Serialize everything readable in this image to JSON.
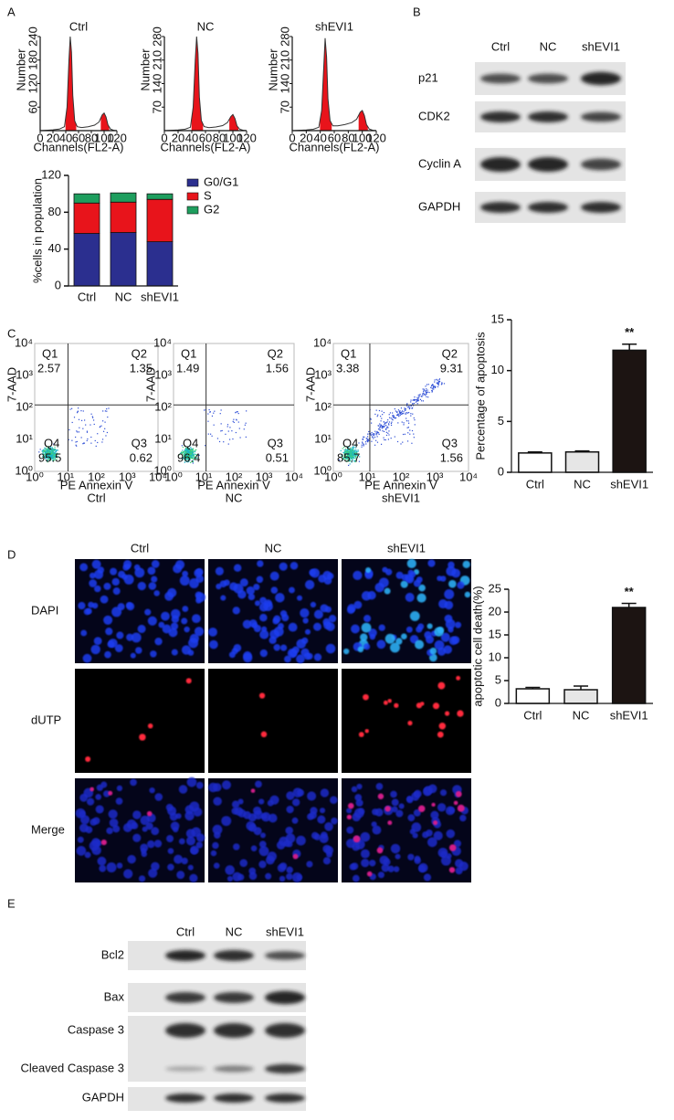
{
  "panel_labels": [
    "A",
    "B",
    "C",
    "D",
    "E"
  ],
  "chart_data": [
    {
      "type": "line",
      "title": "Ctrl",
      "x_label": "Channels(FL2-A)",
      "y_label": "Number",
      "x": [
        0,
        10,
        20,
        30,
        38,
        42,
        45,
        47,
        49,
        51,
        54,
        58,
        65,
        75,
        85,
        92,
        97,
        100,
        103,
        106,
        110,
        115,
        120
      ],
      "values": [
        0,
        1,
        2,
        4,
        10,
        60,
        180,
        240,
        200,
        90,
        25,
        10,
        8,
        10,
        14,
        22,
        40,
        45,
        35,
        15,
        4,
        1,
        0
      ],
      "xlim": [
        0,
        120
      ],
      "xticks": [
        0,
        20,
        40,
        60,
        80,
        100,
        120
      ],
      "ylim": [
        0,
        240
      ],
      "yticks": [
        60,
        120,
        180,
        240
      ],
      "color": "#333333",
      "fill": "#e8141b"
    },
    {
      "type": "line",
      "title": "NC",
      "x_label": "Channels(FL2-A)",
      "y_label": "Number",
      "x": [
        0,
        10,
        20,
        30,
        38,
        42,
        45,
        47,
        49,
        51,
        54,
        58,
        65,
        75,
        85,
        92,
        97,
        100,
        103,
        106,
        110,
        115,
        120
      ],
      "values": [
        0,
        1,
        2,
        4,
        10,
        70,
        210,
        280,
        230,
        100,
        30,
        12,
        9,
        11,
        15,
        24,
        42,
        48,
        36,
        14,
        4,
        1,
        0
      ],
      "xlim": [
        0,
        120
      ],
      "xticks": [
        0,
        20,
        40,
        60,
        80,
        100,
        120
      ],
      "ylim": [
        0,
        280
      ],
      "yticks": [
        70,
        140,
        210,
        280
      ],
      "color": "#333333",
      "fill": "#e8141b"
    },
    {
      "type": "line",
      "title": "shEVI1",
      "x_label": "Channels(FL2-A)",
      "y_label": "Number",
      "x": [
        0,
        10,
        20,
        30,
        38,
        42,
        45,
        47,
        49,
        51,
        54,
        58,
        65,
        75,
        85,
        92,
        97,
        100,
        103,
        106,
        110,
        115,
        120
      ],
      "values": [
        0,
        1,
        2,
        4,
        10,
        60,
        190,
        275,
        220,
        95,
        30,
        14,
        14,
        18,
        24,
        34,
        55,
        60,
        45,
        18,
        5,
        1,
        0
      ],
      "xlim": [
        0,
        120
      ],
      "xticks": [
        0,
        20,
        40,
        60,
        80,
        100,
        120
      ],
      "ylim": [
        0,
        280
      ],
      "yticks": [
        70,
        140,
        210,
        280
      ],
      "color": "#333333",
      "fill": "#e8141b"
    },
    {
      "type": "stacked-bar",
      "y_label": "%cells in population",
      "categories": [
        "Ctrl",
        "NC",
        "shEVI1"
      ],
      "series": [
        {
          "name": "G0/G1",
          "color": "#2b2f8f",
          "values": [
            57,
            58,
            48
          ]
        },
        {
          "name": "S",
          "color": "#e8141b",
          "values": [
            33,
            33,
            46
          ]
        },
        {
          "name": "G2",
          "color": "#1e9e5e",
          "values": [
            10,
            10,
            6
          ]
        }
      ],
      "ylim": [
        0,
        120
      ],
      "yticks": [
        0,
        40,
        80,
        120
      ],
      "legend": "right"
    },
    {
      "type": "bar",
      "y_label": "Percentage of apoptosis",
      "categories": [
        "Ctrl",
        "NC",
        "shEVI1"
      ],
      "values": [
        1.9,
        2.0,
        12.0
      ],
      "errors": [
        0.1,
        0.1,
        0.6
      ],
      "colors": [
        "#ffffff",
        "#e6e6e6",
        "#1c1412"
      ],
      "ylim": [
        0,
        15
      ],
      "yticks": [
        0,
        5,
        10,
        15
      ],
      "annotation": "**"
    },
    {
      "type": "bar",
      "y_label": "apoptotic cell death(%)",
      "categories": [
        "Ctrl",
        "NC",
        "shEVI1"
      ],
      "values": [
        3.2,
        3.0,
        21.0
      ],
      "errors": [
        0.3,
        0.8,
        0.9
      ],
      "colors": [
        "#ffffff",
        "#e6e6e6",
        "#1c1412"
      ],
      "ylim": [
        0,
        25
      ],
      "yticks": [
        0,
        5,
        10,
        15,
        20,
        25
      ],
      "annotation": "**"
    }
  ],
  "western_blot_b": {
    "lanes": [
      "Ctrl",
      "NC",
      "shEVI1"
    ],
    "proteins": [
      "p21",
      "CDK2",
      "Cyclin A",
      "GAPDH"
    ]
  },
  "flow_cytometry": {
    "y_label": "7-AAD",
    "x_label": "PE Annexin V",
    "ticks": [
      "10⁰",
      "10¹",
      "10²",
      "10³",
      "10⁴"
    ],
    "plots": [
      {
        "name": "Ctrl",
        "quadrants": [
          {
            "label": "Q1",
            "value": 2.57
          },
          {
            "label": "Q2",
            "value": 1.35
          },
          {
            "label": "Q3",
            "value": 0.62
          },
          {
            "label": "Q4",
            "value": 95.5
          }
        ]
      },
      {
        "name": "NC",
        "quadrants": [
          {
            "label": "Q1",
            "value": 1.49
          },
          {
            "label": "Q2",
            "value": 1.56
          },
          {
            "label": "Q3",
            "value": 0.51
          },
          {
            "label": "Q4",
            "value": 96.4
          }
        ]
      },
      {
        "name": "shEVI1",
        "quadrants": [
          {
            "label": "Q1",
            "value": 3.38
          },
          {
            "label": "Q2",
            "value": 9.31
          },
          {
            "label": "Q3",
            "value": 1.56
          },
          {
            "label": "Q4",
            "value": 85.7
          }
        ]
      }
    ]
  },
  "tunel": {
    "columns": [
      "Ctrl",
      "NC",
      "shEVI1"
    ],
    "rows": [
      "DAPI",
      "dUTP",
      "Merge"
    ]
  },
  "western_blot_e": {
    "lanes": [
      "Ctrl",
      "NC",
      "shEVI1"
    ],
    "proteins": [
      "Bcl2",
      "Bax",
      "Caspase 3",
      "Cleaved Caspase 3",
      "GAPDH"
    ]
  }
}
